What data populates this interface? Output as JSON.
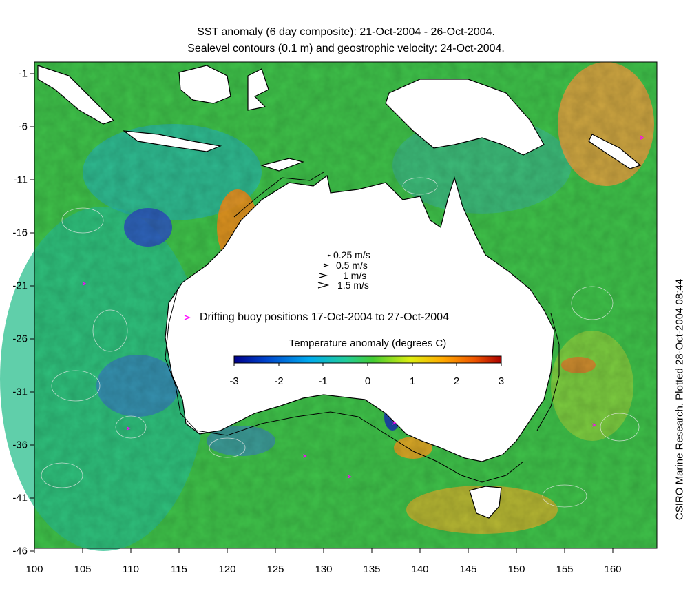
{
  "title_line1": "SST anomaly (6 day composite): 21-Oct-2004 - 26-Oct-2004.",
  "title_line2": "Sealevel contours (0.1 m) and geostrophic velocity: 24-Oct-2004.",
  "side_credit": "CSIRO Marine Research. Plotted 28-Oct-2004 08:44",
  "y_axis_ticks": [
    "-1",
    "-6",
    "-11",
    "-16",
    "-21",
    "-26",
    "-31",
    "-36",
    "-41",
    "-46"
  ],
  "x_axis_ticks": [
    "100",
    "105",
    "110",
    "115",
    "120",
    "125",
    "130",
    "135",
    "140",
    "145",
    "150",
    "155",
    "160"
  ],
  "extent": {
    "lon_min": 100,
    "lon_max": 164,
    "lat_min": -46,
    "lat_max": 0
  },
  "velocity_legend": [
    "0.25 m/s",
    "0.5 m/s",
    "1 m/s",
    "1.5 m/s"
  ],
  "buoy_legend": "Drifting buoy positions 17-Oct-2004 to 27-Oct-2004",
  "colorbar": {
    "title": "Temperature anomaly (degrees C)",
    "ticks": [
      "-3",
      "-2",
      "-1",
      "0",
      "1",
      "2",
      "3"
    ],
    "range": [
      -3,
      3
    ],
    "colors": [
      "#00008b",
      "#0044cc",
      "#00aaee",
      "#22cc99",
      "#44cc33",
      "#ddee11",
      "#ffaa00",
      "#ee5500",
      "#aa0000"
    ]
  },
  "colors": {
    "land": "#ffffff",
    "coastline": "#000000",
    "contour": "#e8e8e8",
    "buoy": "#ff00ff"
  }
}
